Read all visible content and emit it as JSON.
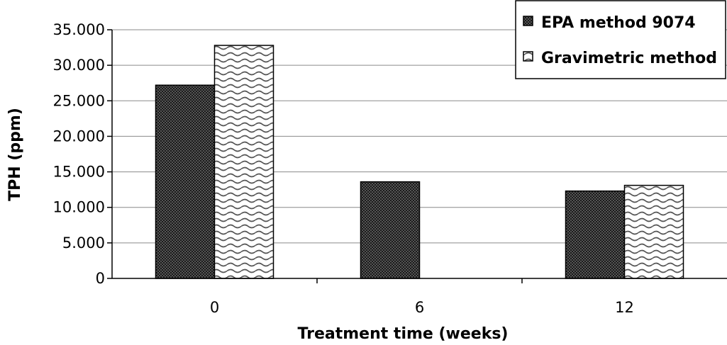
{
  "chart_data": {
    "type": "bar",
    "categories": [
      "0",
      "6",
      "12"
    ],
    "series": [
      {
        "name": "EPA method 9074",
        "values": [
          27200,
          13600,
          12300
        ],
        "pattern": "checker"
      },
      {
        "name": "Gravimetric method",
        "values": [
          32800,
          null,
          13100
        ],
        "pattern": "wave"
      }
    ],
    "title": "",
    "xlabel": "Treatment time (weeks)",
    "ylabel": "TPH (ppm)",
    "ylim": [
      0,
      35000
    ],
    "yticks": [
      0,
      5000,
      10000,
      15000,
      20000,
      25000,
      30000,
      35000
    ],
    "ytick_labels": [
      "0",
      "5.000",
      "10.000",
      "15.000",
      "20.000",
      "25.000",
      "30.000",
      "35.000"
    ],
    "grid": true,
    "legend": "top-right"
  }
}
